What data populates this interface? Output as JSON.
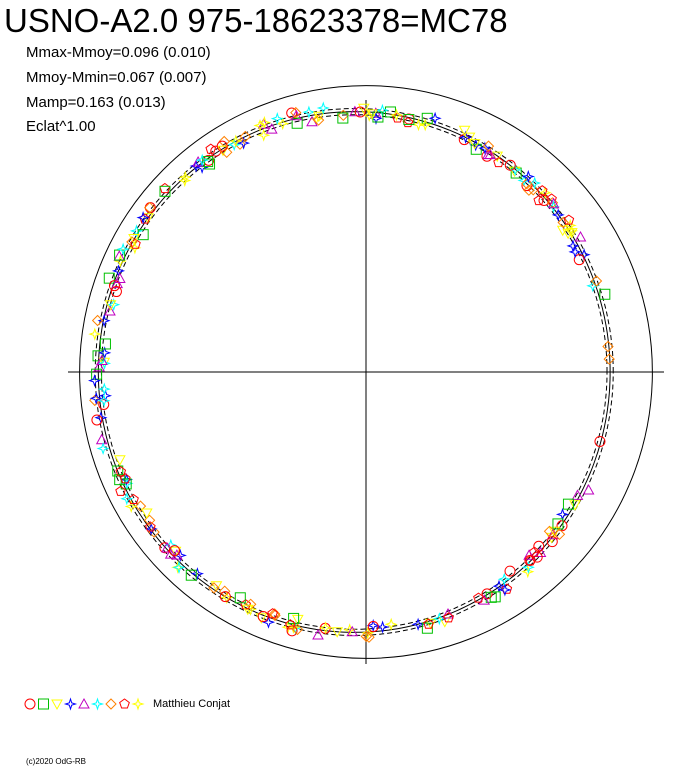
{
  "chart_data": {
    "type": "scatter",
    "title": "USNO-A2.0 975-18623378=MC78",
    "stats": [
      "Mmax-Mmoy=0.096 (0.010)",
      "Mmoy-Mmin=0.067 (0.007)",
      "Mamp=0.163 (0.013)",
      "Eclat^1.00"
    ],
    "mean_radius": 1.0,
    "variation": {
      "max": 0.096,
      "min": 0.067,
      "amplitude": 0.163
    },
    "grid": "cross-hairs",
    "legend": {
      "position": "bottom-left",
      "author": "Matthieu Conjat",
      "markers": [
        {
          "shape": "circle",
          "color": "#ff0000"
        },
        {
          "shape": "square",
          "color": "#00c000"
        },
        {
          "shape": "triangle-down",
          "color": "#ffff00"
        },
        {
          "shape": "star4",
          "color": "#0000ff"
        },
        {
          "shape": "triangle-up",
          "color": "#c000c0"
        },
        {
          "shape": "star4",
          "color": "#00ffff"
        },
        {
          "shape": "diamond",
          "color": "#ff8000"
        },
        {
          "shape": "pentagon",
          "color": "#ff0000"
        },
        {
          "shape": "star4",
          "color": "#ffff00"
        }
      ]
    }
  },
  "footer": {
    "copyright": "(c)2020 OdG-RB"
  }
}
